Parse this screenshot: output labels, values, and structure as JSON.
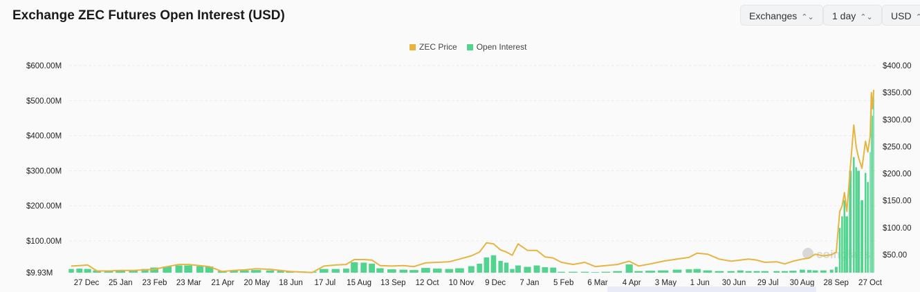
{
  "header": {
    "title": "Exchange ZEC Futures Open Interest (USD)"
  },
  "controls": [
    {
      "label": "Exchanges"
    },
    {
      "label": "1 day"
    },
    {
      "label": "USD"
    }
  ],
  "colors": {
    "price": "#e8b440",
    "oi": "#52d38e"
  },
  "watermark": "coinglass",
  "chart_data": {
    "type": "bar+line",
    "title": "Exchange ZEC Futures Open Interest (USD)",
    "legend": {
      "placement": "top-center",
      "entries": [
        "ZEC Price",
        "Open Interest"
      ]
    },
    "grid": true,
    "left_axis": {
      "ticks": [
        "$9.93M",
        "$100.00M",
        "$200.00M",
        "$300.00M",
        "$400.00M",
        "$500.00M",
        "$600.00M"
      ],
      "range_musd": [
        9.93,
        600
      ]
    },
    "right_axis": {
      "ticks": [
        "$50.00",
        "$100.00",
        "$150.00",
        "$200.00",
        "$250.00",
        "$300.00",
        "$350.00",
        "$400.00"
      ],
      "range_usd": [
        16.7,
        400
      ]
    },
    "x_ticks": [
      "27 Dec",
      "25 Jan",
      "23 Feb",
      "23 Mar",
      "21 Apr",
      "20 May",
      "18 Jun",
      "17 Jul",
      "15 Aug",
      "13 Sep",
      "12 Oct",
      "10 Nov",
      "9 Dec",
      "7 Jan",
      "5 Feb",
      "6 Mar",
      "4 Apr",
      "3 May",
      "1 Jun",
      "30 Jun",
      "29 Jul",
      "30 Aug",
      "28 Sep",
      "27 Oct"
    ],
    "series": [
      {
        "name": "ZEC Price",
        "type": "line",
        "unit": "USD"
      },
      {
        "name": "Open Interest",
        "type": "bar",
        "unit": "M USD"
      }
    ],
    "points": [
      [
        "2023-12-14",
        29,
        20
      ],
      [
        "2023-12-21",
        30,
        21
      ],
      [
        "2023-12-28",
        31,
        20
      ],
      [
        "2024-01-05",
        20,
        16
      ],
      [
        "2024-01-15",
        20,
        16
      ],
      [
        "2024-01-25",
        21,
        17
      ],
      [
        "2024-02-05",
        21,
        17
      ],
      [
        "2024-02-15",
        22,
        20
      ],
      [
        "2024-02-23",
        23,
        24
      ],
      [
        "2024-03-05",
        28,
        27
      ],
      [
        "2024-03-15",
        32,
        30
      ],
      [
        "2024-03-23",
        32,
        30
      ],
      [
        "2024-04-02",
        30,
        28
      ],
      [
        "2024-04-10",
        28,
        27
      ],
      [
        "2024-04-21",
        19,
        14
      ],
      [
        "2024-05-01",
        21,
        15
      ],
      [
        "2024-05-10",
        22,
        16
      ],
      [
        "2024-05-20",
        24,
        17
      ],
      [
        "2024-06-01",
        23,
        16
      ],
      [
        "2024-06-10",
        21,
        15
      ],
      [
        "2024-06-18",
        19,
        14
      ],
      [
        "2024-06-28",
        18,
        13
      ],
      [
        "2024-07-07",
        17,
        12
      ],
      [
        "2024-07-17",
        29,
        20
      ],
      [
        "2024-07-27",
        31,
        20
      ],
      [
        "2024-08-05",
        32,
        21
      ],
      [
        "2024-08-12",
        41,
        39
      ],
      [
        "2024-08-20",
        41,
        38
      ],
      [
        "2024-08-27",
        40,
        35
      ],
      [
        "2024-09-03",
        30,
        22
      ],
      [
        "2024-09-13",
        29,
        19
      ],
      [
        "2024-09-23",
        30,
        18
      ],
      [
        "2024-10-02",
        28,
        17
      ],
      [
        "2024-10-12",
        35,
        23
      ],
      [
        "2024-10-22",
        36,
        21
      ],
      [
        "2024-11-01",
        37,
        20
      ],
      [
        "2024-11-10",
        42,
        22
      ],
      [
        "2024-11-20",
        48,
        28
      ],
      [
        "2024-11-27",
        55,
        35
      ],
      [
        "2024-12-03",
        72,
        53
      ],
      [
        "2024-12-09",
        70,
        59
      ],
      [
        "2024-12-15",
        59,
        43
      ],
      [
        "2024-12-20",
        55,
        38
      ],
      [
        "2024-12-25",
        49,
        20
      ],
      [
        "2024-12-30",
        70,
        30
      ],
      [
        "2025-01-07",
        58,
        26
      ],
      [
        "2025-01-15",
        58,
        30
      ],
      [
        "2025-01-22",
        46,
        25
      ],
      [
        "2025-01-29",
        44,
        24
      ],
      [
        "2025-02-05",
        36,
        12
      ],
      [
        "2025-02-15",
        32,
        12
      ],
      [
        "2025-02-25",
        36,
        12
      ],
      [
        "2025-03-06",
        28,
        11
      ],
      [
        "2025-03-15",
        30,
        12
      ],
      [
        "2025-03-25",
        32,
        14
      ],
      [
        "2025-04-04",
        38,
        33
      ],
      [
        "2025-04-12",
        29,
        14
      ],
      [
        "2025-04-22",
        33,
        15
      ],
      [
        "2025-05-03",
        38,
        16
      ],
      [
        "2025-05-15",
        42,
        18
      ],
      [
        "2025-05-25",
        45,
        19
      ],
      [
        "2025-06-01",
        53,
        20
      ],
      [
        "2025-06-10",
        51,
        16
      ],
      [
        "2025-06-20",
        42,
        14
      ],
      [
        "2025-06-30",
        38,
        14
      ],
      [
        "2025-07-08",
        40,
        16
      ],
      [
        "2025-07-15",
        42,
        14
      ],
      [
        "2025-07-22",
        40,
        14
      ],
      [
        "2025-07-29",
        36,
        14
      ],
      [
        "2025-08-08",
        37,
        14
      ],
      [
        "2025-08-15",
        33,
        14
      ],
      [
        "2025-08-22",
        38,
        15
      ],
      [
        "2025-08-30",
        42,
        18
      ],
      [
        "2025-09-05",
        44,
        17
      ],
      [
        "2025-09-10",
        51,
        16
      ],
      [
        "2025-09-17",
        48,
        16
      ],
      [
        "2025-09-24",
        50,
        18
      ],
      [
        "2025-09-28",
        55,
        26
      ],
      [
        "2025-10-01",
        130,
        137
      ],
      [
        "2025-10-03",
        140,
        170
      ],
      [
        "2025-10-05",
        165,
        216
      ],
      [
        "2025-10-07",
        130,
        170
      ],
      [
        "2025-10-10",
        210,
        300
      ],
      [
        "2025-10-13",
        290,
        339
      ],
      [
        "2025-10-15",
        250,
        310
      ],
      [
        "2025-10-17",
        230,
        300
      ],
      [
        "2025-10-20",
        210,
        216
      ],
      [
        "2025-10-23",
        260,
        294
      ],
      [
        "2025-10-25",
        240,
        268
      ],
      [
        "2025-10-27",
        270,
        353
      ],
      [
        "2025-10-28",
        350,
        515
      ],
      [
        "2025-10-29",
        320,
        457
      ],
      [
        "2025-10-30",
        355,
        529
      ]
    ]
  }
}
